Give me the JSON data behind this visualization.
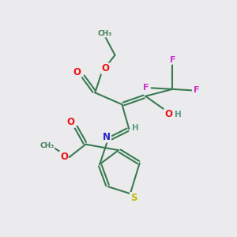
{
  "bg_color": "#ebebed",
  "bond_color": "#3a7a52",
  "bond_width": 1.5,
  "atom_colors": {
    "O": "#ee1111",
    "N": "#2222cc",
    "S": "#bbbb00",
    "F": "#cc33cc",
    "H": "#5a9a88",
    "C": "#3a7a52"
  },
  "figsize": [
    3.0,
    3.0
  ],
  "dpi": 100
}
